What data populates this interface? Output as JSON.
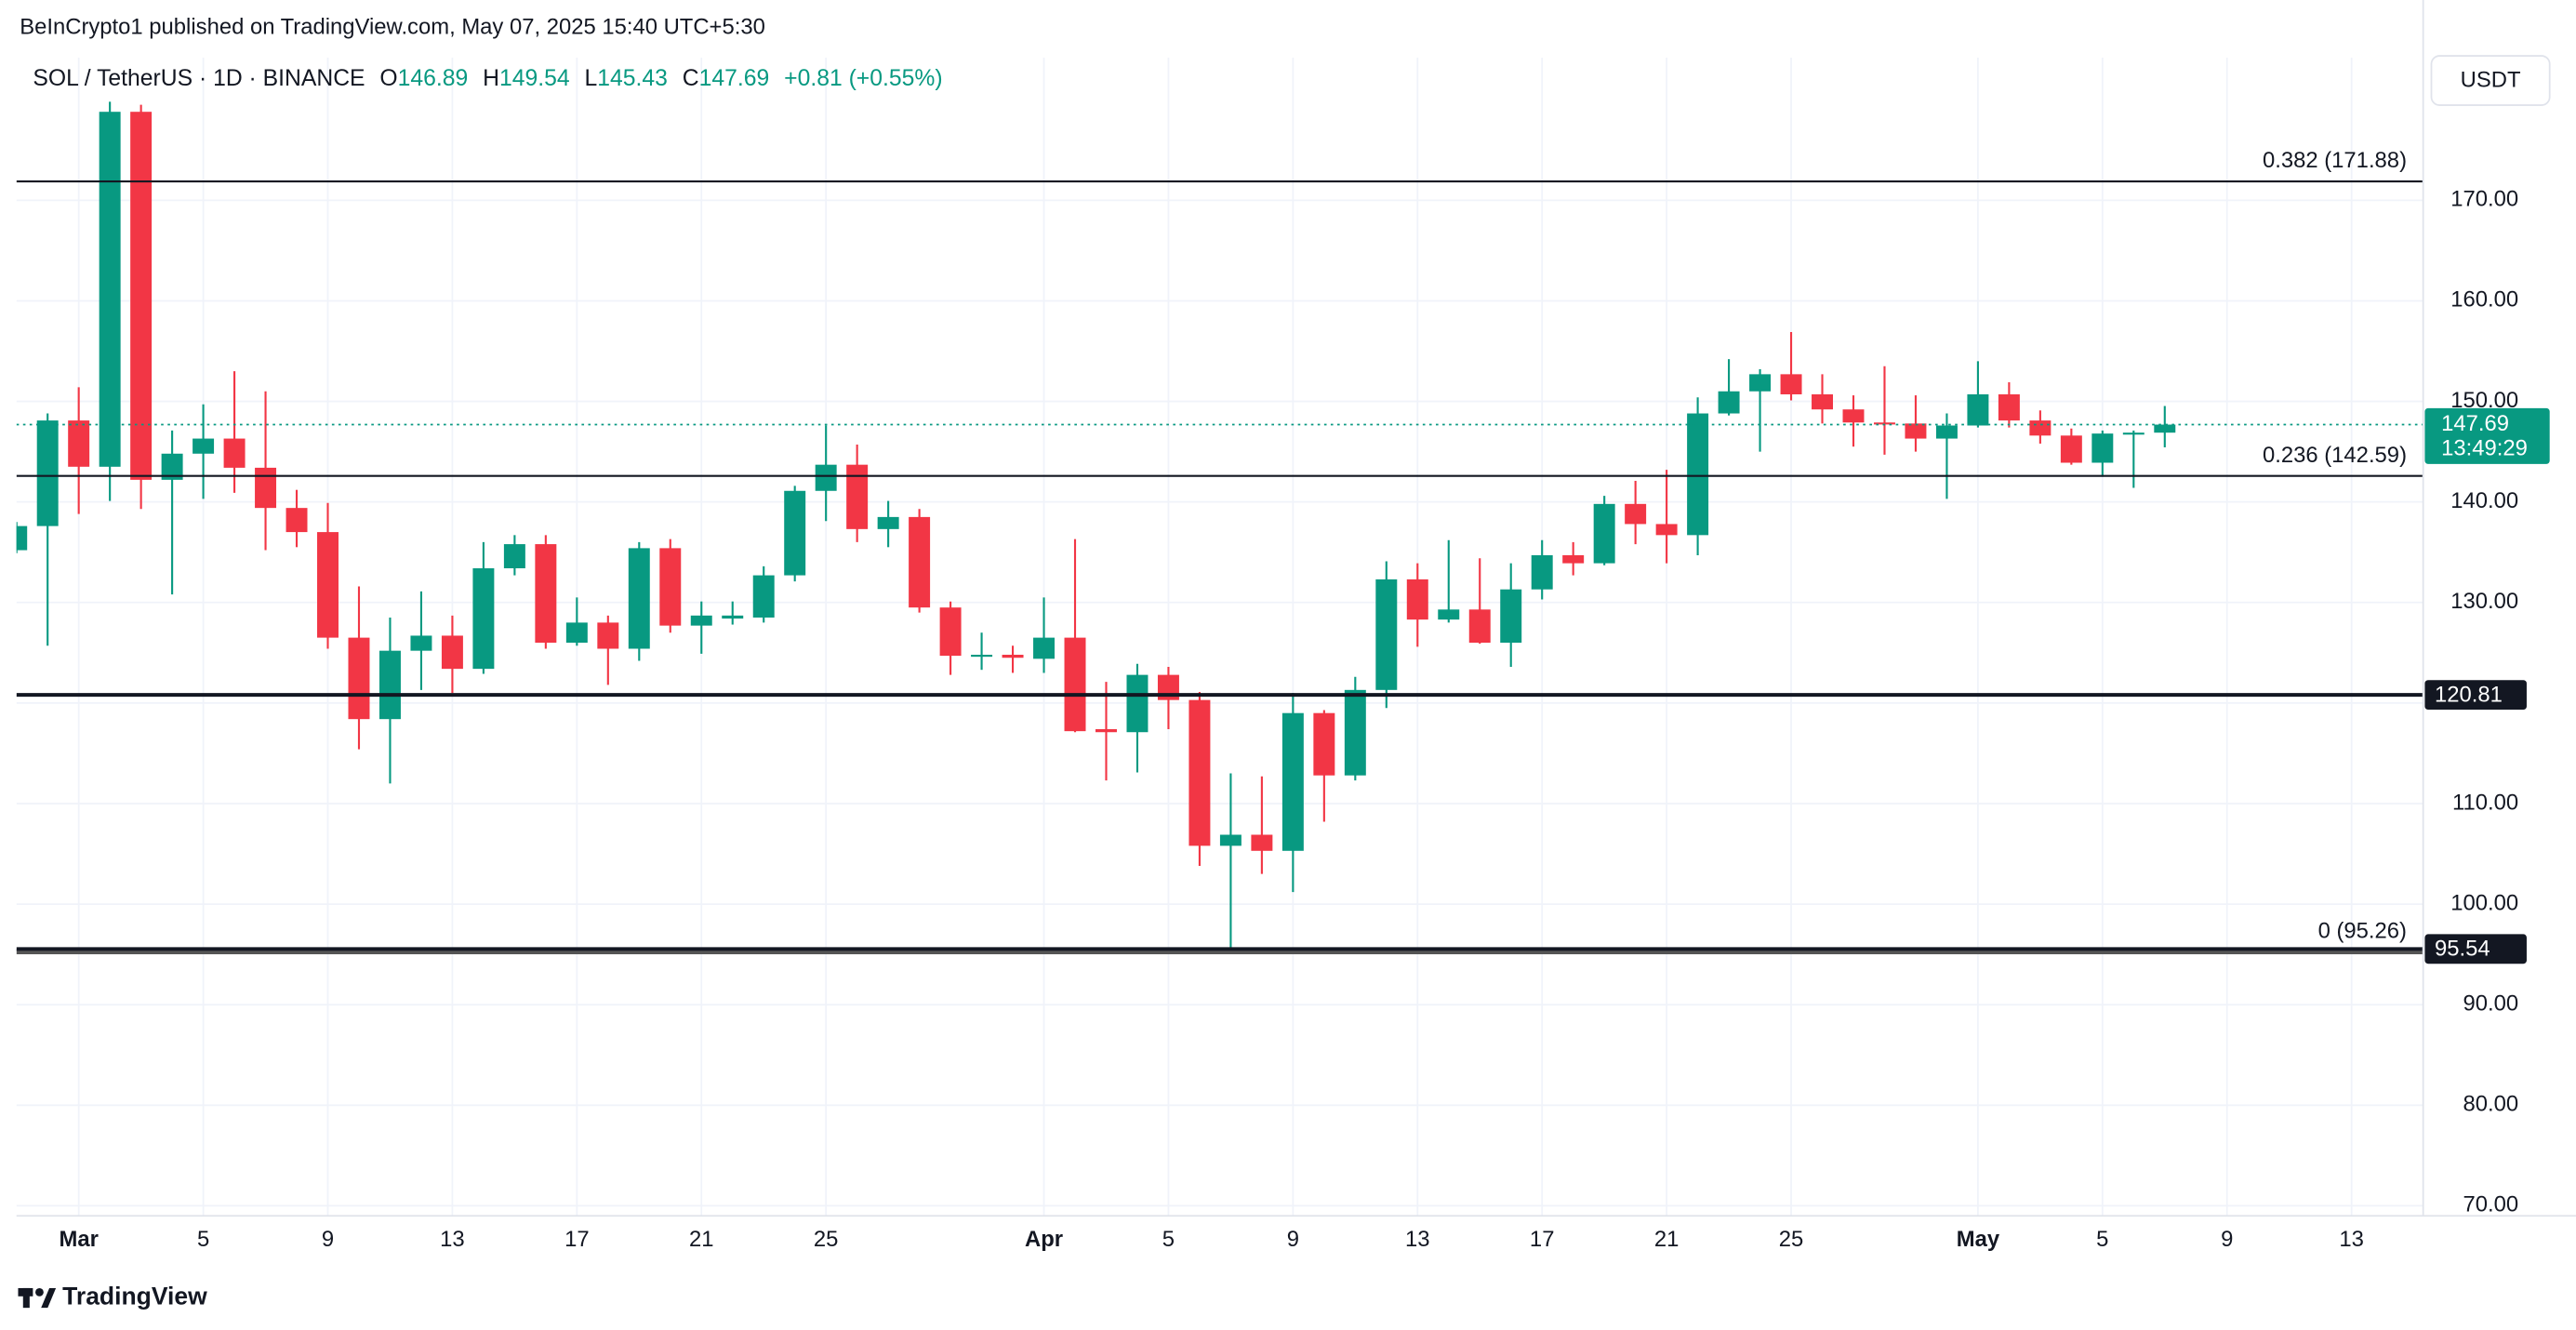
{
  "header": {
    "published": "BeInCrypto1 published on TradingView.com, May 07, 2025 15:40 UTC+5:30",
    "currency": "USDT",
    "brand": "TradingView"
  },
  "chart_data": {
    "type": "candlestick",
    "symbol": "SOL / TetherUS · 1D · BINANCE",
    "ohlc_legend": {
      "o_label": "O",
      "o": 146.89,
      "h_label": "H",
      "h": 149.54,
      "l_label": "L",
      "l": 145.43,
      "c_label": "C",
      "c": 147.69,
      "change": "+0.81 (+0.55%)"
    },
    "up_color": "#089981",
    "down_color": "#f23645",
    "open": [
      135.2,
      137.6,
      148.1,
      143.5,
      178.8,
      142.2,
      144.8,
      146.3,
      143.4,
      139.4,
      137.0,
      126.5,
      118.4,
      125.2,
      126.7,
      123.4,
      133.4,
      135.8,
      126.0,
      128.0,
      125.4,
      135.4,
      127.7,
      128.4,
      128.5,
      132.7,
      141.1,
      143.7,
      137.3,
      138.5,
      129.5,
      124.6,
      124.8,
      124.4,
      126.5,
      117.4,
      117.1,
      122.8,
      120.3,
      105.8,
      106.9,
      105.3,
      119.0,
      112.8,
      121.3,
      132.3,
      128.3,
      129.3,
      126.0,
      131.3,
      134.7,
      133.9,
      139.8,
      137.8,
      136.7,
      148.8,
      151.0,
      152.7,
      150.7,
      149.2,
      147.9,
      147.8,
      146.3,
      147.6,
      150.7,
      148.1,
      146.6,
      143.9,
      146.8,
      146.89
    ],
    "high": [
      138.0,
      148.8,
      151.4,
      179.8,
      179.5,
      147.1,
      149.7,
      153.0,
      151.0,
      141.2,
      139.9,
      131.6,
      128.5,
      131.1,
      128.7,
      136.0,
      136.7,
      136.7,
      130.5,
      128.7,
      136.0,
      136.3,
      130.1,
      130.1,
      133.6,
      141.6,
      147.6,
      145.7,
      140.1,
      139.3,
      130.1,
      127.0,
      125.7,
      130.5,
      136.3,
      122.1,
      123.9,
      123.6,
      121.1,
      113.0,
      112.7,
      121.0,
      119.3,
      122.6,
      134.1,
      133.9,
      136.2,
      134.4,
      133.9,
      136.2,
      136.0,
      140.6,
      142.1,
      143.2,
      150.4,
      154.2,
      153.2,
      156.9,
      152.7,
      150.6,
      153.5,
      150.6,
      148.8,
      154.0,
      151.9,
      149.1,
      147.3,
      147.1,
      147.1,
      149.54
    ],
    "low": [
      134.9,
      125.7,
      138.8,
      140.1,
      139.3,
      130.8,
      140.3,
      140.9,
      135.2,
      135.5,
      125.4,
      115.4,
      112.0,
      121.3,
      121.0,
      122.9,
      132.7,
      125.4,
      125.7,
      121.8,
      124.2,
      127.0,
      124.9,
      127.8,
      128.0,
      132.1,
      138.1,
      136.0,
      135.5,
      129.0,
      122.8,
      123.3,
      123.0,
      123.0,
      117.1,
      112.3,
      113.1,
      117.4,
      103.8,
      95.5,
      103.0,
      101.2,
      108.2,
      112.3,
      119.5,
      125.6,
      128.0,
      125.9,
      123.6,
      130.3,
      132.7,
      133.7,
      135.8,
      133.9,
      134.7,
      148.6,
      145.0,
      150.1,
      147.8,
      145.5,
      144.7,
      145.0,
      140.3,
      147.4,
      147.4,
      145.8,
      143.7,
      142.5,
      141.4,
      145.43
    ],
    "close": [
      137.6,
      148.1,
      143.5,
      178.8,
      142.2,
      144.8,
      146.3,
      143.4,
      139.4,
      137.0,
      126.5,
      118.4,
      125.2,
      126.7,
      123.4,
      133.4,
      135.8,
      126.0,
      128.0,
      125.4,
      135.4,
      127.7,
      128.7,
      128.7,
      132.7,
      141.1,
      143.7,
      137.3,
      138.5,
      129.5,
      124.7,
      124.8,
      124.5,
      126.5,
      117.2,
      117.1,
      122.8,
      120.3,
      105.8,
      106.9,
      105.3,
      119.0,
      112.8,
      121.3,
      132.3,
      128.3,
      129.3,
      126.0,
      131.3,
      134.7,
      133.9,
      139.8,
      137.8,
      136.7,
      148.8,
      151.0,
      152.7,
      150.7,
      149.2,
      147.9,
      147.8,
      146.3,
      147.6,
      150.7,
      148.1,
      146.6,
      143.9,
      146.8,
      146.89,
      147.69
    ],
    "xlim": [
      0,
      77.3
    ],
    "xticks": [
      {
        "value": 2,
        "label": "Mar"
      },
      {
        "value": 6,
        "label": "5"
      },
      {
        "value": 10,
        "label": "9"
      },
      {
        "value": 14,
        "label": "13"
      },
      {
        "value": 18,
        "label": "17"
      },
      {
        "value": 22,
        "label": "21"
      },
      {
        "value": 26,
        "label": "25"
      },
      {
        "value": 33,
        "label": "Apr"
      },
      {
        "value": 37,
        "label": "5"
      },
      {
        "value": 41,
        "label": "9"
      },
      {
        "value": 45,
        "label": "13"
      },
      {
        "value": 49,
        "label": "17"
      },
      {
        "value": 53,
        "label": "21"
      },
      {
        "value": 57,
        "label": "25"
      },
      {
        "value": 63,
        "label": "May"
      },
      {
        "value": 67,
        "label": "5"
      },
      {
        "value": 71,
        "label": "9"
      },
      {
        "value": 75,
        "label": "13"
      }
    ],
    "ylim": [
      69,
      184.2
    ],
    "yticks": [
      {
        "value": 70,
        "label": "70.00"
      },
      {
        "value": 80,
        "label": "80.00"
      },
      {
        "value": 90,
        "label": "90.00"
      },
      {
        "value": 100,
        "label": "100.00"
      },
      {
        "value": 110,
        "label": "110.00"
      },
      {
        "value": 120,
        "label": "120.00"
      },
      {
        "value": 130,
        "label": "130.00"
      },
      {
        "value": 140,
        "label": "140.00"
      },
      {
        "value": 150,
        "label": "150.00"
      },
      {
        "value": 160,
        "label": "160.00"
      },
      {
        "value": 170,
        "label": "170.00"
      }
    ],
    "grid": true,
    "fib_levels": [
      {
        "value": 171.88,
        "label": "0.382 (171.88)"
      },
      {
        "value": 142.59,
        "label": "0.236 (142.59)"
      },
      {
        "value": 95.26,
        "label": "0 (95.26)"
      }
    ],
    "support_levels": [
      120.81,
      95.54
    ],
    "last_price": {
      "value": 147.69,
      "countdown": "13:49:29"
    }
  }
}
